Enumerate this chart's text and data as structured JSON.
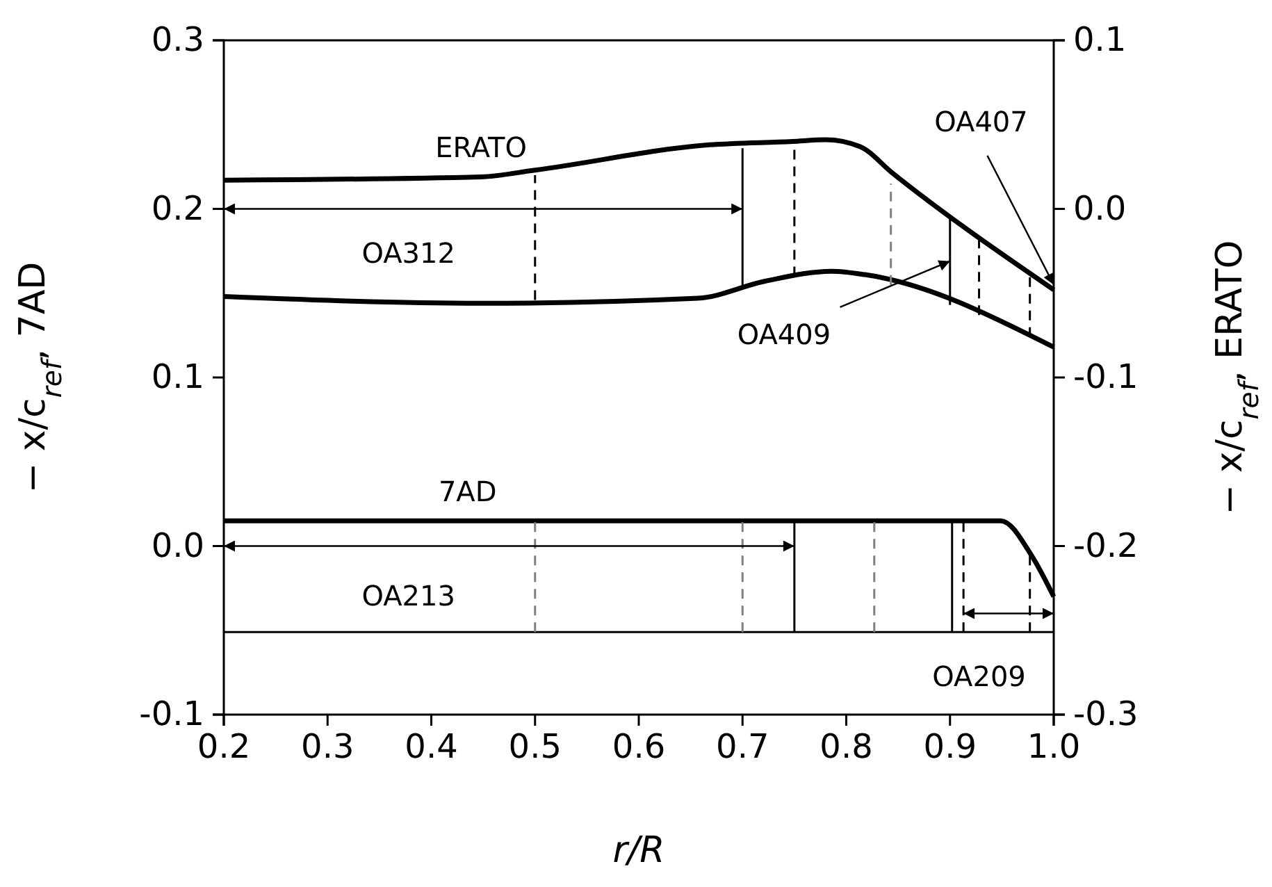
{
  "chart_data": {
    "type": "line",
    "xlabel": "r/R",
    "ylabel": "− x/c$_{ref}$, 7AD",
    "y2label": "− x/c$_{ref}$, ERATO",
    "xlim": [
      0.2,
      1.0
    ],
    "xticks": [
      0.2,
      0.3,
      0.4,
      0.5,
      0.6,
      0.7,
      0.8,
      0.9,
      {
        "value": 1.0,
        "label": "1.0"
      }
    ],
    "ylim": [
      -0.1,
      0.3
    ],
    "yticks": [
      -0.1,
      {
        "value": 0,
        "label": "0.0"
      },
      0.1,
      0.2,
      0.3
    ],
    "y2lim": [
      -0.3,
      0.1
    ],
    "y2ticks": [
      -0.3,
      -0.2,
      -0.1,
      {
        "value": 0,
        "label": "0.0"
      },
      0.1
    ],
    "grid": false,
    "line_style": "solid",
    "series": [
      {
        "name": "ERATO",
        "color": "#000000",
        "axis": "y2",
        "x": [
          0.2,
          0.448,
          0.5,
          0.668,
          0.748,
          0.78,
          0.813,
          0.845,
          1.0
        ],
        "values": [
          0.017,
          0.019,
          0.023,
          0.038,
          0.04,
          0.041,
          0.037,
          0.021,
          -0.048
        ]
      },
      {
        "color": "#000000",
        "axis": "y2",
        "x": [
          0.2,
          0.448,
          0.657,
          0.721,
          0.786,
          0.818,
          1.0
        ],
        "values": [
          -0.052,
          -0.056,
          -0.053,
          -0.043,
          -0.037,
          -0.039,
          -0.082
        ]
      },
      {
        "color": "#000000",
        "axis": "y2",
        "line_style": "dashed",
        "x": [
          0.5,
          0.5
        ],
        "values": [
          -0.054,
          0.02
        ]
      },
      {
        "color": "#000000",
        "axis": "y2",
        "x": [
          0.7,
          0.7
        ],
        "values": [
          -0.046,
          0.036
        ]
      },
      {
        "color": "#000000",
        "axis": "y2",
        "line_style": "dashed",
        "x": [
          0.75,
          0.75
        ],
        "values": [
          -0.04,
          0.039
        ]
      },
      {
        "color": "#808080",
        "axis": "y2",
        "line_style": "dashed",
        "x": [
          0.843,
          0.843
        ],
        "values": [
          -0.045,
          0.015
        ]
      },
      {
        "color": "#000000",
        "axis": "y2",
        "x": [
          0.9,
          0.9
        ],
        "values": [
          -0.057,
          -0.006
        ]
      },
      {
        "color": "#000000",
        "axis": "y2",
        "line_style": "dashed",
        "x": [
          0.928,
          0.928
        ],
        "values": [
          -0.063,
          -0.018
        ]
      },
      {
        "color": "#000000",
        "axis": "y2",
        "line_style": "dashed",
        "x": [
          0.977,
          0.977
        ],
        "values": [
          -0.076,
          -0.039
        ]
      },
      {
        "name": "7AD",
        "color": "#000000",
        "x": [
          0.2,
          0.435,
          0.949,
          0.979,
          1.0
        ],
        "values": [
          0.015,
          0.015,
          0.015,
          -0.006,
          -0.03
        ]
      },
      {
        "color": "#000000",
        "x": [
          0.2,
          1.0
        ],
        "values": [
          -0.051,
          -0.051
        ]
      },
      {
        "color": "#808080",
        "line_style": "dashed",
        "x": [
          0.5,
          0.5
        ],
        "values": [
          -0.051,
          0.015
        ]
      },
      {
        "color": "#808080",
        "line_style": "dashed",
        "x": [
          0.7,
          0.7
        ],
        "values": [
          -0.051,
          0.015
        ]
      },
      {
        "color": "#000000",
        "x": [
          0.75,
          0.75
        ],
        "values": [
          -0.051,
          0.015
        ]
      },
      {
        "color": "#808080",
        "line_style": "dashed",
        "x": [
          0.827,
          0.827
        ],
        "values": [
          -0.051,
          0.015
        ]
      },
      {
        "color": "#000000",
        "x": [
          0.902,
          0.902
        ],
        "values": [
          -0.051,
          0.015
        ]
      },
      {
        "color": "#000000",
        "line_style": "dashed",
        "x": [
          0.913,
          0.913
        ],
        "values": [
          -0.051,
          0.015
        ]
      },
      {
        "color": "#000000",
        "line_style": "dashed",
        "x": [
          0.977,
          0.977
        ],
        "values": [
          -0.051,
          -0.004
        ]
      }
    ],
    "annotations": [
      "OA312",
      {
        "text": "OA409",
        "x": 0.9,
        "y": 0.169
      },
      {
        "text": "OA407",
        "x": 1.0,
        "y": 0.155
      },
      "OA213",
      "OA209"
    ]
  }
}
